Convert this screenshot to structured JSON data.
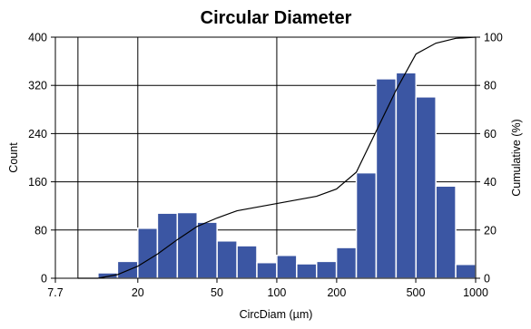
{
  "chart_data": {
    "type": "bar",
    "title": "Circular Diameter",
    "xlabel": "CircDiam (µm)",
    "ylabel": "Count",
    "y2label": "Cumulative (%)",
    "x_scale": "log",
    "xlim": [
      7.7,
      1000
    ],
    "ylim": [
      0,
      400
    ],
    "y2lim": [
      0,
      100
    ],
    "x_ticks": [
      7.7,
      20,
      50,
      100,
      200,
      500,
      1000
    ],
    "x_tick_labels": [
      "7.7",
      "20",
      "50",
      "100",
      "200",
      "500",
      "1000"
    ],
    "y_ticks": [
      0,
      80,
      160,
      240,
      320,
      400
    ],
    "y_tick_labels": [
      "0",
      "80",
      "160",
      "240",
      "320",
      "400"
    ],
    "y2_ticks": [
      0,
      20,
      40,
      60,
      80,
      100
    ],
    "y2_tick_labels": [
      "0",
      "20",
      "40",
      "60",
      "80",
      "100"
    ],
    "grid": true,
    "bin_edges": [
      10,
      12.6,
      15.8,
      20,
      25.1,
      31.6,
      39.8,
      50.1,
      63.1,
      79.4,
      100,
      125.9,
      158.5,
      199.5,
      251.2,
      316.2,
      398.1,
      501.2,
      631,
      794.3,
      1000
    ],
    "series": [
      {
        "type": "bar",
        "values": [
          0,
          9,
          28,
          83,
          108,
          109,
          93,
          62,
          54,
          26,
          38,
          24,
          28,
          51,
          175,
          331,
          341,
          301,
          153,
          23
        ]
      },
      {
        "type": "line",
        "axis": "y2",
        "x": [
          10,
          12.6,
          15.8,
          20,
          25.1,
          31.6,
          39.8,
          50.1,
          63.1,
          79.4,
          100,
          125.9,
          158.5,
          199.5,
          251.2,
          316.2,
          398.1,
          501.2,
          631,
          794.3,
          1000
        ],
        "values": [
          0,
          0,
          1.5,
          5,
          10,
          16,
          21.5,
          25,
          28,
          29.5,
          31,
          32.5,
          34,
          37,
          44,
          61,
          78,
          93,
          97.5,
          99.5,
          100
        ]
      }
    ],
    "colors": {
      "bar_fill": "#3b56a3",
      "bar_stroke": "#ffffff",
      "line": "#000000",
      "grid": "#000000"
    }
  }
}
